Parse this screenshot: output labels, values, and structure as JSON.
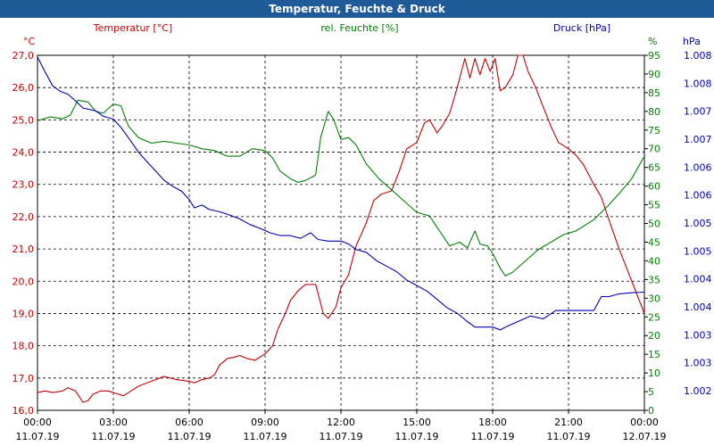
{
  "chart_data": {
    "type": "line",
    "title": "Temperatur, Feuchte & Druck",
    "colors": {
      "temperature": "#c00000",
      "humidity": "#008000",
      "pressure": "#0000b0"
    },
    "axes": {
      "left": {
        "unit": "°C",
        "min": 16.0,
        "max": 27.0,
        "ticks": [
          "16,0",
          "17,0",
          "18,0",
          "19,0",
          "20,0",
          "21,0",
          "22,0",
          "23,0",
          "24,0",
          "25,0",
          "26,0",
          "27,0"
        ]
      },
      "right1": {
        "unit": "%",
        "min": 0,
        "max": 95,
        "ticks": [
          "0",
          "5",
          "10",
          "15",
          "20",
          "25",
          "30",
          "35",
          "40",
          "45",
          "50",
          "55",
          "60",
          "65",
          "70",
          "75",
          "80",
          "85",
          "90",
          "95"
        ]
      },
      "right2": {
        "unit": "hPa",
        "min": 1001.6,
        "max": 1008.0,
        "ticks": [
          "1.002",
          "1.003",
          "1.003",
          "1.004",
          "1.004",
          "1.005",
          "1.005",
          "1.006",
          "1.006",
          "1.007",
          "1.007",
          "1.008",
          "1.008"
        ]
      }
    },
    "x_ticks": [
      {
        "time": "00:00",
        "date": "11.07.19"
      },
      {
        "time": "03:00",
        "date": "11.07.19"
      },
      {
        "time": "06:00",
        "date": "11.07.19"
      },
      {
        "time": "09:00",
        "date": "11.07.19"
      },
      {
        "time": "12:00",
        "date": "11.07.19"
      },
      {
        "time": "15:00",
        "date": "11.07.19"
      },
      {
        "time": "18:00",
        "date": "11.07.19"
      },
      {
        "time": "21:00",
        "date": "11.07.19"
      },
      {
        "time": "00:00",
        "date": "12.07.19"
      }
    ],
    "x_range_hours": [
      0,
      24
    ],
    "grid": true,
    "series": [
      {
        "name": "Temperatur [°C]",
        "axis": "left",
        "color_key": "temperature",
        "points": [
          [
            0,
            16.55
          ],
          [
            0.3,
            16.6
          ],
          [
            0.6,
            16.55
          ],
          [
            1.0,
            16.6
          ],
          [
            1.2,
            16.7
          ],
          [
            1.5,
            16.6
          ],
          [
            1.8,
            16.25
          ],
          [
            2.0,
            16.3
          ],
          [
            2.2,
            16.5
          ],
          [
            2.5,
            16.6
          ],
          [
            2.8,
            16.6
          ],
          [
            3.2,
            16.5
          ],
          [
            3.4,
            16.45
          ],
          [
            3.7,
            16.6
          ],
          [
            4.0,
            16.75
          ],
          [
            4.5,
            16.9
          ],
          [
            5.0,
            17.05
          ],
          [
            5.5,
            16.95
          ],
          [
            6.0,
            16.9
          ],
          [
            6.2,
            16.85
          ],
          [
            6.5,
            16.95
          ],
          [
            6.8,
            17.0
          ],
          [
            7.0,
            17.1
          ],
          [
            7.2,
            17.4
          ],
          [
            7.5,
            17.6
          ],
          [
            7.8,
            17.65
          ],
          [
            8.0,
            17.7
          ],
          [
            8.3,
            17.6
          ],
          [
            8.6,
            17.55
          ],
          [
            9.0,
            17.75
          ],
          [
            9.3,
            18.0
          ],
          [
            9.5,
            18.5
          ],
          [
            9.8,
            19.0
          ],
          [
            10.0,
            19.4
          ],
          [
            10.3,
            19.7
          ],
          [
            10.6,
            19.9
          ],
          [
            11.0,
            19.9
          ],
          [
            11.3,
            19.0
          ],
          [
            11.5,
            18.85
          ],
          [
            11.8,
            19.2
          ],
          [
            12.0,
            19.8
          ],
          [
            12.3,
            20.2
          ],
          [
            12.6,
            21.1
          ],
          [
            13.0,
            21.8
          ],
          [
            13.3,
            22.5
          ],
          [
            13.6,
            22.7
          ],
          [
            14.0,
            22.8
          ],
          [
            14.3,
            23.4
          ],
          [
            14.6,
            24.1
          ],
          [
            15.0,
            24.3
          ],
          [
            15.3,
            24.9
          ],
          [
            15.5,
            25.0
          ],
          [
            15.8,
            24.6
          ],
          [
            16.0,
            24.8
          ],
          [
            16.3,
            25.2
          ],
          [
            16.6,
            26.0
          ],
          [
            16.9,
            26.9
          ],
          [
            17.1,
            26.3
          ],
          [
            17.3,
            26.9
          ],
          [
            17.5,
            26.4
          ],
          [
            17.7,
            26.9
          ],
          [
            17.9,
            26.5
          ],
          [
            18.1,
            26.9
          ],
          [
            18.3,
            25.9
          ],
          [
            18.5,
            26.0
          ],
          [
            18.8,
            26.4
          ],
          [
            19.0,
            27.0
          ],
          [
            19.2,
            27.0
          ],
          [
            19.4,
            26.5
          ],
          [
            19.7,
            26.0
          ],
          [
            20.0,
            25.4
          ],
          [
            20.3,
            24.8
          ],
          [
            20.6,
            24.3
          ],
          [
            21.0,
            24.1
          ],
          [
            21.3,
            23.9
          ],
          [
            21.6,
            23.6
          ],
          [
            22.0,
            23.0
          ],
          [
            22.3,
            22.6
          ],
          [
            22.6,
            21.9
          ],
          [
            23.0,
            21.0
          ],
          [
            23.3,
            20.4
          ],
          [
            23.6,
            19.8
          ],
          [
            24.0,
            19.0
          ]
        ]
      },
      {
        "name": "rel. Feuchte [%]",
        "axis": "right1",
        "color_key": "humidity",
        "points": [
          [
            0,
            77.5
          ],
          [
            0.5,
            78.5
          ],
          [
            1.0,
            78
          ],
          [
            1.3,
            79
          ],
          [
            1.6,
            83
          ],
          [
            2.0,
            82.5
          ],
          [
            2.3,
            80
          ],
          [
            2.6,
            79.5
          ],
          [
            3.0,
            82
          ],
          [
            3.3,
            81.5
          ],
          [
            3.6,
            76
          ],
          [
            4.0,
            73
          ],
          [
            4.5,
            71.5
          ],
          [
            5.0,
            72
          ],
          [
            5.5,
            71.5
          ],
          [
            6.0,
            71
          ],
          [
            6.5,
            70
          ],
          [
            7.0,
            69.5
          ],
          [
            7.5,
            68
          ],
          [
            8.0,
            68
          ],
          [
            8.5,
            70
          ],
          [
            9.0,
            69.5
          ],
          [
            9.3,
            67.5
          ],
          [
            9.6,
            64
          ],
          [
            10.0,
            62
          ],
          [
            10.3,
            61
          ],
          [
            10.6,
            61.5
          ],
          [
            11.0,
            63
          ],
          [
            11.2,
            73
          ],
          [
            11.5,
            80
          ],
          [
            11.7,
            78
          ],
          [
            12.0,
            72.5
          ],
          [
            12.3,
            73
          ],
          [
            12.6,
            71
          ],
          [
            13.0,
            66
          ],
          [
            13.5,
            62
          ],
          [
            14.0,
            59
          ],
          [
            14.5,
            56
          ],
          [
            15.0,
            53
          ],
          [
            15.5,
            52
          ],
          [
            16.0,
            47
          ],
          [
            16.3,
            44
          ],
          [
            16.7,
            45
          ],
          [
            17.0,
            43.5
          ],
          [
            17.3,
            48
          ],
          [
            17.5,
            44.5
          ],
          [
            17.8,
            44
          ],
          [
            18.0,
            42
          ],
          [
            18.3,
            38
          ],
          [
            18.5,
            36
          ],
          [
            18.8,
            37
          ],
          [
            19.3,
            40
          ],
          [
            19.8,
            43
          ],
          [
            20.3,
            45
          ],
          [
            20.8,
            47
          ],
          [
            21.3,
            48
          ],
          [
            22.0,
            51
          ],
          [
            22.6,
            55
          ],
          [
            23.0,
            58
          ],
          [
            23.5,
            62
          ],
          [
            24.0,
            68
          ]
        ]
      },
      {
        "name": "Druck [hPa]",
        "axis": "right2",
        "color_key": "pressure",
        "points": [
          [
            0,
            1007.97
          ],
          [
            0.3,
            1007.7
          ],
          [
            0.6,
            1007.45
          ],
          [
            0.9,
            1007.35
          ],
          [
            1.2,
            1007.3
          ],
          [
            1.5,
            1007.18
          ],
          [
            1.8,
            1007.05
          ],
          [
            2.3,
            1007.0
          ],
          [
            2.6,
            1006.9
          ],
          [
            3.0,
            1006.85
          ],
          [
            3.3,
            1006.7
          ],
          [
            3.7,
            1006.45
          ],
          [
            4.0,
            1006.25
          ],
          [
            4.3,
            1006.1
          ],
          [
            4.6,
            1005.95
          ],
          [
            5.0,
            1005.75
          ],
          [
            5.3,
            1005.65
          ],
          [
            5.7,
            1005.55
          ],
          [
            6.0,
            1005.4
          ],
          [
            6.2,
            1005.25
          ],
          [
            6.5,
            1005.3
          ],
          [
            6.8,
            1005.22
          ],
          [
            7.2,
            1005.18
          ],
          [
            7.6,
            1005.12
          ],
          [
            8.0,
            1005.05
          ],
          [
            8.4,
            1004.95
          ],
          [
            8.8,
            1004.88
          ],
          [
            9.2,
            1004.8
          ],
          [
            9.6,
            1004.75
          ],
          [
            10.0,
            1004.75
          ],
          [
            10.4,
            1004.7
          ],
          [
            10.8,
            1004.8
          ],
          [
            11.1,
            1004.68
          ],
          [
            11.5,
            1004.65
          ],
          [
            12.0,
            1004.65
          ],
          [
            12.3,
            1004.6
          ],
          [
            12.6,
            1004.5
          ],
          [
            13.0,
            1004.45
          ],
          [
            13.4,
            1004.3
          ],
          [
            13.8,
            1004.2
          ],
          [
            14.2,
            1004.1
          ],
          [
            14.6,
            1003.95
          ],
          [
            15.0,
            1003.85
          ],
          [
            15.4,
            1003.75
          ],
          [
            15.8,
            1003.6
          ],
          [
            16.2,
            1003.45
          ],
          [
            16.6,
            1003.35
          ],
          [
            17.0,
            1003.2
          ],
          [
            17.3,
            1003.1
          ],
          [
            17.7,
            1003.1
          ],
          [
            18.0,
            1003.1
          ],
          [
            18.3,
            1003.05
          ],
          [
            18.6,
            1003.12
          ],
          [
            19.0,
            1003.2
          ],
          [
            19.5,
            1003.3
          ],
          [
            20.0,
            1003.25
          ],
          [
            20.5,
            1003.4
          ],
          [
            21.0,
            1003.4
          ],
          [
            21.5,
            1003.4
          ],
          [
            22.0,
            1003.4
          ],
          [
            22.3,
            1003.65
          ],
          [
            22.6,
            1003.65
          ],
          [
            23.0,
            1003.7
          ],
          [
            23.5,
            1003.72
          ],
          [
            24.0,
            1003.73
          ]
        ]
      }
    ]
  }
}
